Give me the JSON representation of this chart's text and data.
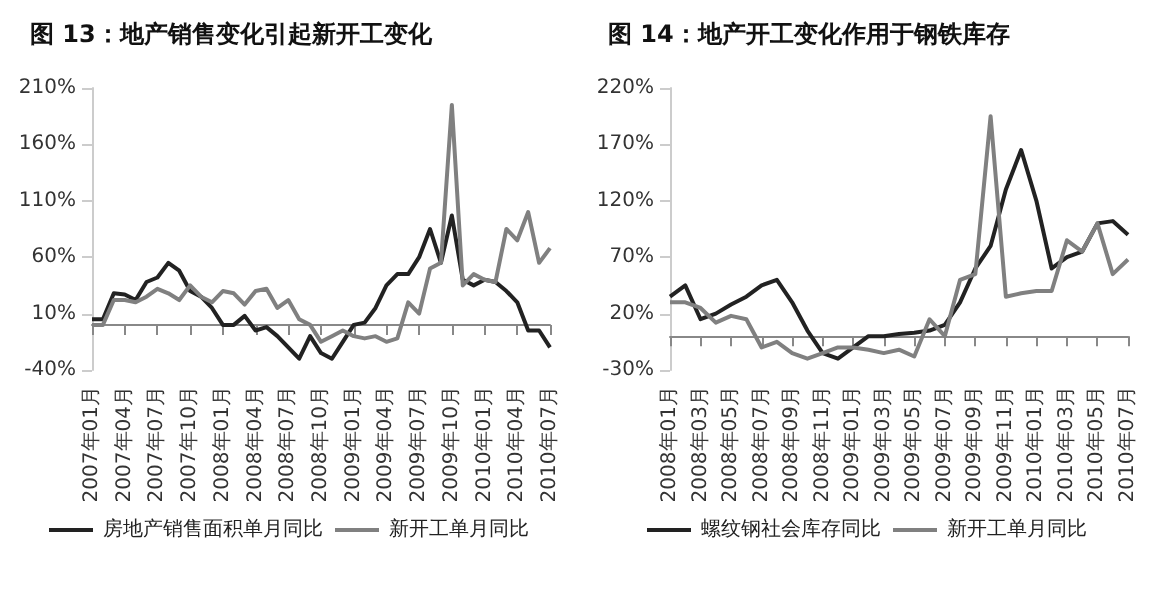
{
  "chart_data": [
    {
      "type": "line",
      "title": "图 13：地产销售变化引起新开工变化",
      "legend": "bottom",
      "marker": "none",
      "categories": [
        "2007年01月",
        null,
        null,
        "2007年04月",
        null,
        null,
        "2007年07月",
        null,
        null,
        "2007年10月",
        null,
        null,
        "2008年01月",
        null,
        null,
        "2008年04月",
        null,
        null,
        "2008年07月",
        null,
        null,
        "2008年10月",
        null,
        null,
        "2009年01月",
        null,
        null,
        "2009年04月",
        null,
        null,
        "2009年07月",
        null,
        null,
        "2009年10月",
        null,
        null,
        "2010年01月",
        null,
        null,
        "2010年04月",
        null,
        null,
        "2010年07月"
      ],
      "ylim": [
        -40,
        210
      ],
      "yticks": [
        {
          "value": -40,
          "label": "-40%"
        },
        {
          "value": 10,
          "label": "10%"
        },
        {
          "value": 60,
          "label": "60%"
        },
        {
          "value": 110,
          "label": "110%"
        },
        {
          "value": 160,
          "label": "160%"
        },
        {
          "value": 210,
          "label": "210%"
        }
      ],
      "series": [
        {
          "name": "房地产销售面积单月同比",
          "color": "#222222",
          "values": [
            5,
            5,
            28,
            27,
            22,
            38,
            42,
            55,
            48,
            30,
            25,
            15,
            0,
            0,
            8,
            -5,
            -2,
            -10,
            -20,
            -30,
            -10,
            -25,
            -30,
            -15,
            0,
            2,
            15,
            35,
            45,
            45,
            60,
            85,
            55,
            97,
            40,
            35,
            40,
            38,
            30,
            20,
            -5,
            -5,
            -20
          ]
        },
        {
          "name": "新开工单月同比",
          "color": "#808080",
          "values": [
            0,
            0,
            22,
            22,
            20,
            25,
            32,
            28,
            22,
            35,
            25,
            20,
            30,
            28,
            18,
            30,
            32,
            15,
            22,
            5,
            0,
            -15,
            -10,
            -5,
            -10,
            -12,
            -10,
            -15,
            -12,
            20,
            10,
            50,
            55,
            195,
            35,
            45,
            40,
            38,
            85,
            75,
            100,
            55,
            68
          ]
        }
      ]
    },
    {
      "type": "line",
      "title": "图 14：地产开工变化作用于钢铁库存",
      "legend": "bottom",
      "marker": "none",
      "categories": [
        "2008年01月",
        null,
        "2008年03月",
        null,
        "2008年05月",
        null,
        "2008年07月",
        null,
        "2008年09月",
        null,
        "2008年11月",
        null,
        "2009年01月",
        null,
        "2009年03月",
        null,
        "2009年05月",
        null,
        "2009年07月",
        null,
        "2009年09月",
        null,
        "2009年11月",
        null,
        "2010年01月",
        null,
        "2010年03月",
        null,
        "2010年05月",
        null,
        "2010年07月"
      ],
      "ylim": [
        -30,
        220
      ],
      "yticks": [
        {
          "value": -30,
          "label": "-30%"
        },
        {
          "value": 20,
          "label": "20%"
        },
        {
          "value": 70,
          "label": "70%"
        },
        {
          "value": 120,
          "label": "120%"
        },
        {
          "value": 170,
          "label": "170%"
        },
        {
          "value": 220,
          "label": "220%"
        }
      ],
      "series": [
        {
          "name": "螺纹钢社会库存同比",
          "color": "#222222",
          "values": [
            35,
            45,
            15,
            20,
            28,
            35,
            45,
            50,
            30,
            5,
            -15,
            -20,
            -10,
            0,
            0,
            2,
            3,
            5,
            10,
            30,
            60,
            80,
            130,
            165,
            120,
            60,
            70,
            75,
            100,
            102,
            90
          ]
        },
        {
          "name": "新开工单月同比",
          "color": "#808080",
          "values": [
            30,
            30,
            25,
            12,
            18,
            15,
            -10,
            -5,
            -15,
            -20,
            -15,
            -10,
            -10,
            -12,
            -15,
            -12,
            -18,
            15,
            0,
            50,
            55,
            195,
            35,
            38,
            40,
            40,
            85,
            75,
            100,
            55,
            68
          ]
        }
      ]
    }
  ]
}
